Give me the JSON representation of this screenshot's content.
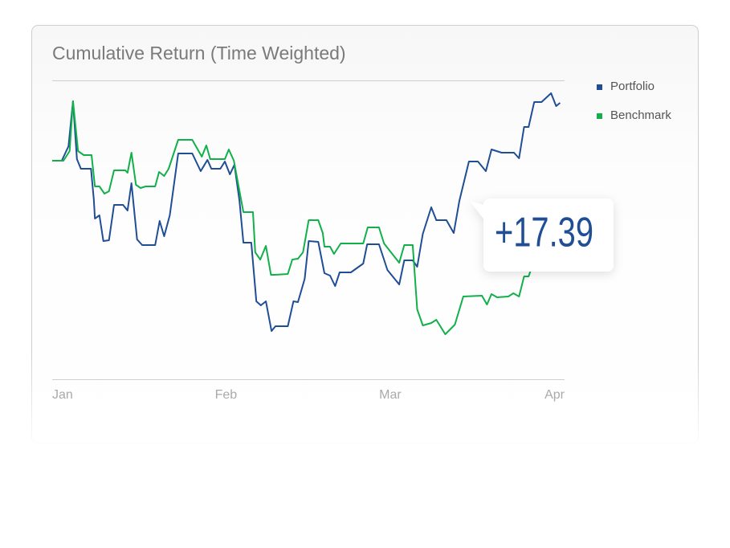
{
  "chart_data": {
    "type": "line",
    "title": "Cumulative Return (Time Weighted)",
    "annotation": "+17.39",
    "xlim": [
      0,
      91.1
    ],
    "ylim": [
      -68,
      25
    ],
    "xticks": [
      {
        "value": 0,
        "label": "Jan"
      },
      {
        "value": 30.9,
        "label": "Feb"
      },
      {
        "value": 60.1,
        "label": "Mar"
      },
      {
        "value": 89.6,
        "label": "Apr"
      }
    ],
    "legend": "right",
    "series": [
      {
        "name": "Portfolio",
        "color": "#1f4e96",
        "x": [
          0,
          1.7,
          2.9,
          3.7,
          4.4,
          5.1,
          6.9,
          7.4,
          7.6,
          8.4,
          9.1,
          10.1,
          11,
          12.6,
          13.4,
          14.1,
          15.1,
          16,
          18.3,
          19.1,
          19.9,
          20.9,
          22.4,
          24.9,
          26.4,
          27.6,
          28.3,
          29.9,
          30.7,
          31.6,
          32.4,
          33.3,
          34,
          35.4,
          36.3,
          37.1,
          38,
          39,
          39.7,
          41.9,
          42.9,
          43.7,
          44.9,
          45.6,
          47.3,
          48.4,
          49.4,
          50.3,
          51.1,
          53.1,
          55.3,
          56,
          58.1,
          59.6,
          61.7,
          62.6,
          64.1,
          64.9,
          65.9,
          67.4,
          68.3,
          70.1,
          71.4,
          72.4,
          74.1,
          75.7,
          77.1,
          78.1,
          79.9,
          82.1,
          83,
          83.9,
          84.7,
          85.7,
          87,
          88.7,
          89.6,
          90.3
        ],
        "values": [
          0,
          0,
          4.5,
          18.5,
          0.5,
          -2.5,
          -2.5,
          -12,
          -18,
          -17,
          -25,
          -24.75,
          -13.75,
          -13.75,
          -15.5,
          -7,
          -24.5,
          -26.25,
          -26.25,
          -18.75,
          -23.5,
          -17,
          2.25,
          2.25,
          -3.25,
          0.25,
          -2.5,
          -2.5,
          -0.25,
          -4.25,
          -1.25,
          -12.5,
          -25.5,
          -25.5,
          -43.75,
          -45,
          -43.75,
          -53,
          -51.5,
          -51.5,
          -43.75,
          -44,
          -36.75,
          -25,
          -25.25,
          -35,
          -35.75,
          -39,
          -34.75,
          -34.75,
          -32,
          -26,
          -26,
          -34,
          -38.5,
          -31,
          -31,
          -33,
          -22.75,
          -14.5,
          -18.5,
          -18.5,
          -22.5,
          -12.5,
          -0.25,
          -0.25,
          -3.25,
          3.5,
          2.5,
          2.5,
          0.75,
          10.5,
          10.5,
          18.25,
          18.25,
          21,
          17,
          18
        ]
      },
      {
        "name": "Benchmark",
        "color": "#12b04a",
        "x": [
          0,
          2,
          3.1,
          3.7,
          4.6,
          5.6,
          7,
          7.6,
          8.4,
          9.3,
          10.1,
          11,
          13,
          13.4,
          14.1,
          14.9,
          15.7,
          16.6,
          18.3,
          19,
          19.9,
          20.7,
          22.4,
          24.9,
          26.6,
          27.4,
          28.1,
          30.7,
          31.4,
          32.3,
          34,
          35.7,
          36.1,
          37,
          38,
          38.9,
          39.6,
          41.9,
          42.7,
          43.7,
          44.6,
          45.6,
          47.3,
          48.1,
          48.4,
          49.4,
          50.1,
          51.3,
          55.3,
          56.1,
          58.1,
          59,
          61.7,
          62.6,
          64.1,
          64.9,
          65.9,
          67.4,
          68.3,
          69.9,
          71.6,
          73.1,
          76.4,
          77.3,
          78.1,
          79.1,
          81.1,
          82,
          83,
          83.9,
          84.7,
          85.4
        ],
        "values": [
          0,
          0,
          3,
          18.5,
          3,
          1.75,
          1.75,
          -8,
          -8,
          -10.25,
          -9.5,
          -3,
          -3,
          -3.75,
          2.5,
          -7.5,
          -8.5,
          -8,
          -8,
          -3.5,
          -4.75,
          -2.5,
          6.5,
          6.5,
          1.25,
          4.75,
          0.5,
          0.5,
          3.5,
          0,
          -16,
          -16,
          -28.5,
          -30.75,
          -26.5,
          -35.5,
          -35.5,
          -35.25,
          -30.75,
          -30.5,
          -28.5,
          -18.5,
          -18.5,
          -22.5,
          -26.75,
          -26.75,
          -29,
          -25.75,
          -25.75,
          -20.75,
          -20.75,
          -25.75,
          -31.75,
          -26.25,
          -26.25,
          -46.25,
          -51.25,
          -50.5,
          -49.5,
          -54,
          -51,
          -42.25,
          -42,
          -44.75,
          -41.5,
          -42.5,
          -42.25,
          -41.25,
          -42.25,
          -36,
          -36,
          -32.5
        ]
      }
    ]
  }
}
